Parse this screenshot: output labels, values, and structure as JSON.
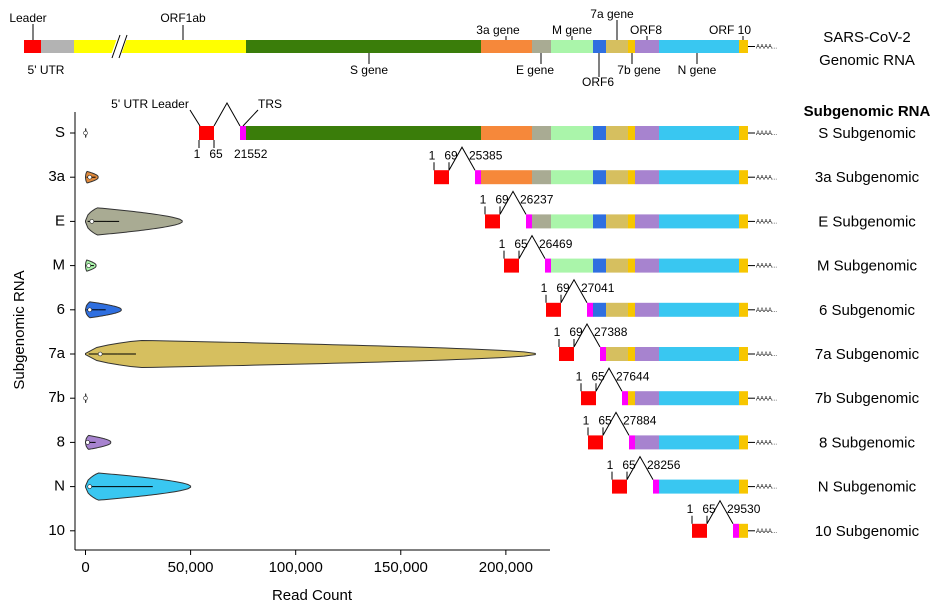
{
  "genome": {
    "title": [
      "SARS-CoV-2",
      "Genomic RNA"
    ],
    "segment_colors": [
      "#ff0000",
      "#b3b3b3",
      "#ffff00",
      "#3a7d0a",
      "#f6883a",
      "#a9ab93",
      "#aaf5aa",
      "#2f6fe0",
      "#d6bf5f",
      "#f7c600",
      "#a783cf",
      "#39c7f1",
      "#f7c600"
    ],
    "labels": [
      "Leader",
      "5' UTR",
      "ORF1ab",
      "S gene",
      "3a gene",
      "E gene",
      "M gene",
      "ORF6",
      "7a gene",
      "7b gene",
      "ORF8",
      "N gene",
      "ORF 10"
    ],
    "tail": "AAAA..."
  },
  "subgenomic": {
    "header": "Subgenomic RNA",
    "leader_label": "5' UTR Leader",
    "trs_label": "TRS",
    "trs_color": "#ff00ff",
    "rows": [
      {
        "name": "S Subgenomic",
        "start": 1,
        "leader_end": 65,
        "junction": 21552
      },
      {
        "name": "3a Subgenomic",
        "start": 1,
        "leader_end": 69,
        "junction": 25385
      },
      {
        "name": "E Subgenomic",
        "start": 1,
        "leader_end": 69,
        "junction": 26237
      },
      {
        "name": "M Subgenomic",
        "start": 1,
        "leader_end": 65,
        "junction": 26469
      },
      {
        "name": "6 Subgenomic",
        "start": 1,
        "leader_end": 69,
        "junction": 27041
      },
      {
        "name": "7a Subgenomic",
        "start": 1,
        "leader_end": 69,
        "junction": 27388
      },
      {
        "name": "7b Subgenomic",
        "start": 1,
        "leader_end": 65,
        "junction": 27644
      },
      {
        "name": "8 Subgenomic",
        "start": 1,
        "leader_end": 65,
        "junction": 27884
      },
      {
        "name": "N Subgenomic",
        "start": 1,
        "leader_end": 65,
        "junction": 28256
      },
      {
        "name": "10 Subgenomic",
        "start": 1,
        "leader_end": 65,
        "junction": 29530
      }
    ]
  },
  "chart_data": {
    "type": "violin",
    "x_label": "Read Count",
    "y_label": "Subgenomic RNA",
    "categories": [
      "S",
      "3a",
      "E",
      "M",
      "6",
      "7a",
      "7b",
      "8",
      "N",
      "10"
    ],
    "colors": [
      "#b3b3b3",
      "#e08a3c",
      "#a9ab93",
      "#aaf5aa",
      "#2f6fe0",
      "#d6bf5f",
      "#b3b3b3",
      "#a783cf",
      "#39c7f1",
      null
    ],
    "max": [
      300,
      6000,
      46000,
      5000,
      17000,
      214000,
      300,
      12000,
      50000,
      null
    ],
    "q1": [
      0,
      500,
      1000,
      500,
      500,
      1500,
      0,
      300,
      1000,
      null
    ],
    "median": [
      0,
      2000,
      3000,
      1500,
      2000,
      7000,
      0,
      1000,
      2000,
      null
    ],
    "q3": [
      100,
      3000,
      10000,
      2500,
      6000,
      15000,
      100,
      3000,
      20000,
      null
    ],
    "xlim": [
      -5000,
      221000
    ],
    "xticks": [
      0,
      {
        "value": 50000,
        "label": "50,000"
      },
      {
        "value": 100000,
        "label": "100,000"
      },
      {
        "value": 150000,
        "label": "150,000"
      },
      {
        "value": 200000,
        "label": "200,000"
      }
    ]
  }
}
